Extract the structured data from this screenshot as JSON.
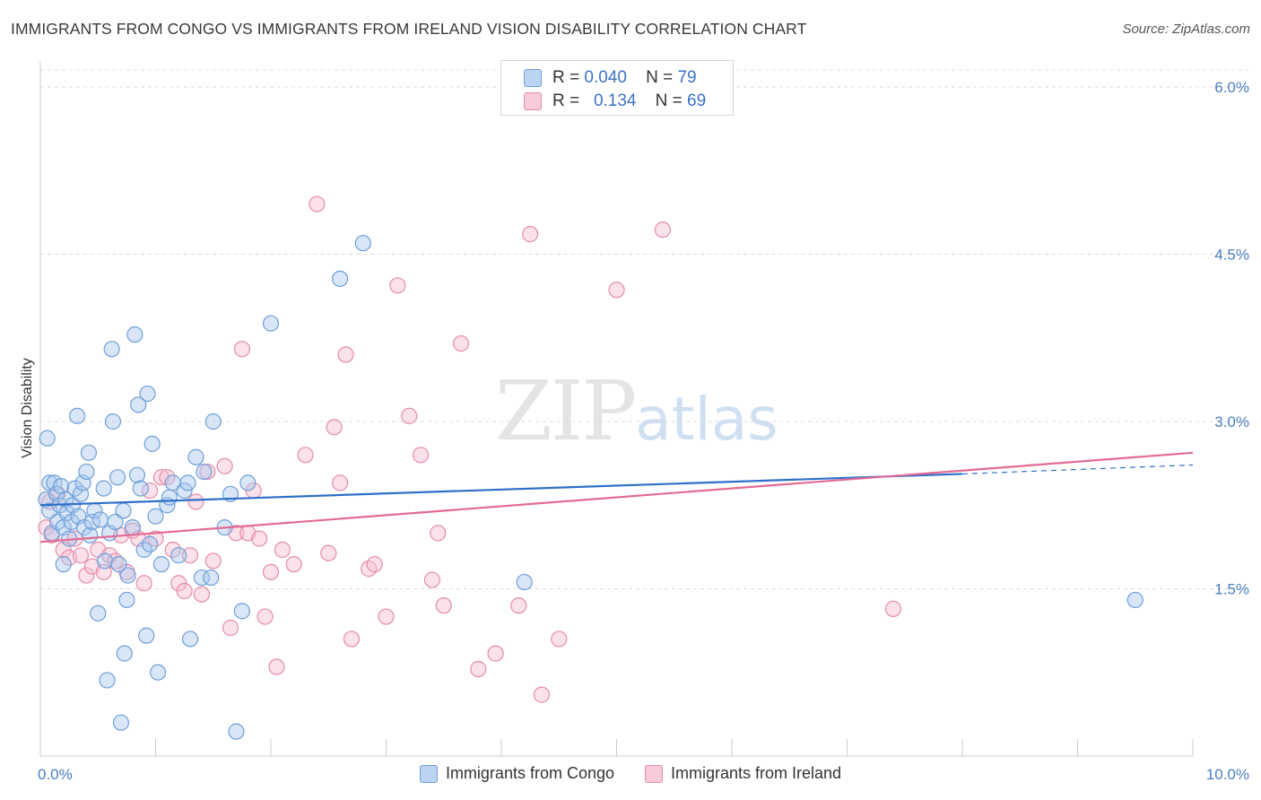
{
  "title": "IMMIGRANTS FROM CONGO VS IMMIGRANTS FROM IRELAND VISION DISABILITY CORRELATION CHART",
  "source": "Source: ZipAtlas.com",
  "watermark": {
    "zip": "ZIP",
    "atlas": "atlas"
  },
  "legend_top": [
    {
      "r_label": "R =",
      "r_value": "0.040",
      "n_label": "N =",
      "n_value": "79"
    },
    {
      "r_label": "R =",
      "r_value": "0.134",
      "n_label": "N =",
      "n_value": "69"
    }
  ],
  "chart_data": {
    "type": "scatter",
    "xlabel": "",
    "ylabel": "Vision Disability",
    "xlim": [
      0,
      10
    ],
    "ylim": [
      0,
      6.2
    ],
    "x_tick_labels": [
      "0.0%",
      "10.0%"
    ],
    "y_ticks": [
      1.5,
      3.0,
      4.5,
      6.0
    ],
    "y_tick_labels": [
      "1.5%",
      "3.0%",
      "4.5%",
      "6.0%"
    ],
    "grid": "horizontal dashed",
    "legend_position": "bottom-center",
    "colors": {
      "congo_fill": "#a9c8ee",
      "congo_stroke": "#6e9fd8",
      "congo_line": "#2f6fc9",
      "ireland_fill": "#f6bccf",
      "ireland_stroke": "#e58cab",
      "ireland_line": "#e36b96"
    },
    "series": [
      {
        "name": "Immigrants from Congo",
        "trend": {
          "x0": 0.0,
          "y0": 2.25,
          "x1": 8.0,
          "y1": 2.53,
          "dash_to_x": 10.0,
          "dash_to_y": 2.61
        },
        "points": [
          [
            0.05,
            2.3
          ],
          [
            0.06,
            2.85
          ],
          [
            0.08,
            2.45
          ],
          [
            0.08,
            2.2
          ],
          [
            0.1,
            2.0
          ],
          [
            0.12,
            2.45
          ],
          [
            0.14,
            2.35
          ],
          [
            0.15,
            2.1
          ],
          [
            0.17,
            2.25
          ],
          [
            0.18,
            2.42
          ],
          [
            0.2,
            2.05
          ],
          [
            0.2,
            1.72
          ],
          [
            0.22,
            2.3
          ],
          [
            0.23,
            2.18
          ],
          [
            0.25,
            1.95
          ],
          [
            0.27,
            2.1
          ],
          [
            0.28,
            2.25
          ],
          [
            0.3,
            2.4
          ],
          [
            0.32,
            3.05
          ],
          [
            0.33,
            2.15
          ],
          [
            0.35,
            2.35
          ],
          [
            0.37,
            2.45
          ],
          [
            0.38,
            2.05
          ],
          [
            0.4,
            2.55
          ],
          [
            0.42,
            2.72
          ],
          [
            0.43,
            1.98
          ],
          [
            0.45,
            2.1
          ],
          [
            0.47,
            2.2
          ],
          [
            0.5,
            1.28
          ],
          [
            0.52,
            2.12
          ],
          [
            0.55,
            2.4
          ],
          [
            0.56,
            1.75
          ],
          [
            0.58,
            0.68
          ],
          [
            0.6,
            2.0
          ],
          [
            0.62,
            3.65
          ],
          [
            0.63,
            3.0
          ],
          [
            0.65,
            2.1
          ],
          [
            0.67,
            2.5
          ],
          [
            0.68,
            1.72
          ],
          [
            0.7,
            0.3
          ],
          [
            0.72,
            2.2
          ],
          [
            0.73,
            0.92
          ],
          [
            0.75,
            1.4
          ],
          [
            0.76,
            1.62
          ],
          [
            0.8,
            2.05
          ],
          [
            0.82,
            3.78
          ],
          [
            0.84,
            2.52
          ],
          [
            0.85,
            3.15
          ],
          [
            0.87,
            2.4
          ],
          [
            0.9,
            1.85
          ],
          [
            0.92,
            1.08
          ],
          [
            0.93,
            3.25
          ],
          [
            0.95,
            1.9
          ],
          [
            0.97,
            2.8
          ],
          [
            1.0,
            2.15
          ],
          [
            1.02,
            0.75
          ],
          [
            1.05,
            1.72
          ],
          [
            1.1,
            2.25
          ],
          [
            1.12,
            2.32
          ],
          [
            1.15,
            2.45
          ],
          [
            1.2,
            1.8
          ],
          [
            1.25,
            2.38
          ],
          [
            1.28,
            2.45
          ],
          [
            1.3,
            1.05
          ],
          [
            1.35,
            2.68
          ],
          [
            1.4,
            1.6
          ],
          [
            1.42,
            2.55
          ],
          [
            1.48,
            1.6
          ],
          [
            1.5,
            3.0
          ],
          [
            1.6,
            2.05
          ],
          [
            1.65,
            2.35
          ],
          [
            1.7,
            0.22
          ],
          [
            1.75,
            1.3
          ],
          [
            1.8,
            2.45
          ],
          [
            2.0,
            3.88
          ],
          [
            2.6,
            4.28
          ],
          [
            2.8,
            4.6
          ],
          [
            4.2,
            1.56
          ],
          [
            9.5,
            1.4
          ]
        ]
      },
      {
        "name": "Immigrants from Ireland",
        "trend": {
          "x0": 0.0,
          "y0": 1.92,
          "x1": 10.0,
          "y1": 2.72
        },
        "points": [
          [
            0.05,
            2.05
          ],
          [
            0.08,
            2.28
          ],
          [
            0.1,
            1.98
          ],
          [
            0.15,
            2.35
          ],
          [
            0.2,
            1.85
          ],
          [
            0.25,
            1.78
          ],
          [
            0.3,
            1.95
          ],
          [
            0.35,
            1.8
          ],
          [
            0.4,
            1.62
          ],
          [
            0.45,
            1.7
          ],
          [
            0.5,
            1.85
          ],
          [
            0.55,
            1.65
          ],
          [
            0.6,
            1.8
          ],
          [
            0.65,
            1.75
          ],
          [
            0.7,
            1.98
          ],
          [
            0.75,
            1.65
          ],
          [
            0.8,
            2.02
          ],
          [
            0.85,
            1.95
          ],
          [
            0.9,
            1.55
          ],
          [
            0.95,
            2.38
          ],
          [
            1.0,
            1.95
          ],
          [
            1.05,
            2.5
          ],
          [
            1.1,
            2.5
          ],
          [
            1.15,
            1.85
          ],
          [
            1.2,
            1.55
          ],
          [
            1.25,
            1.48
          ],
          [
            1.3,
            1.8
          ],
          [
            1.35,
            2.28
          ],
          [
            1.4,
            1.45
          ],
          [
            1.45,
            2.55
          ],
          [
            1.5,
            1.75
          ],
          [
            1.6,
            2.6
          ],
          [
            1.65,
            1.15
          ],
          [
            1.7,
            2.0
          ],
          [
            1.75,
            3.65
          ],
          [
            1.8,
            2.0
          ],
          [
            1.85,
            2.38
          ],
          [
            1.9,
            1.95
          ],
          [
            1.95,
            1.25
          ],
          [
            2.0,
            1.65
          ],
          [
            2.05,
            0.8
          ],
          [
            2.1,
            1.85
          ],
          [
            2.2,
            1.72
          ],
          [
            2.3,
            2.7
          ],
          [
            2.4,
            4.95
          ],
          [
            2.5,
            1.82
          ],
          [
            2.55,
            2.95
          ],
          [
            2.6,
            2.45
          ],
          [
            2.65,
            3.6
          ],
          [
            2.7,
            1.05
          ],
          [
            2.85,
            1.68
          ],
          [
            2.9,
            1.72
          ],
          [
            3.0,
            1.25
          ],
          [
            3.1,
            4.22
          ],
          [
            3.2,
            3.05
          ],
          [
            3.3,
            2.7
          ],
          [
            3.4,
            1.58
          ],
          [
            3.45,
            2.0
          ],
          [
            3.5,
            1.35
          ],
          [
            3.65,
            3.7
          ],
          [
            3.8,
            0.78
          ],
          [
            3.95,
            0.92
          ],
          [
            4.15,
            1.35
          ],
          [
            4.25,
            4.68
          ],
          [
            4.35,
            0.55
          ],
          [
            4.5,
            1.05
          ],
          [
            5.0,
            4.18
          ],
          [
            5.4,
            4.72
          ],
          [
            7.4,
            1.32
          ]
        ]
      }
    ]
  }
}
